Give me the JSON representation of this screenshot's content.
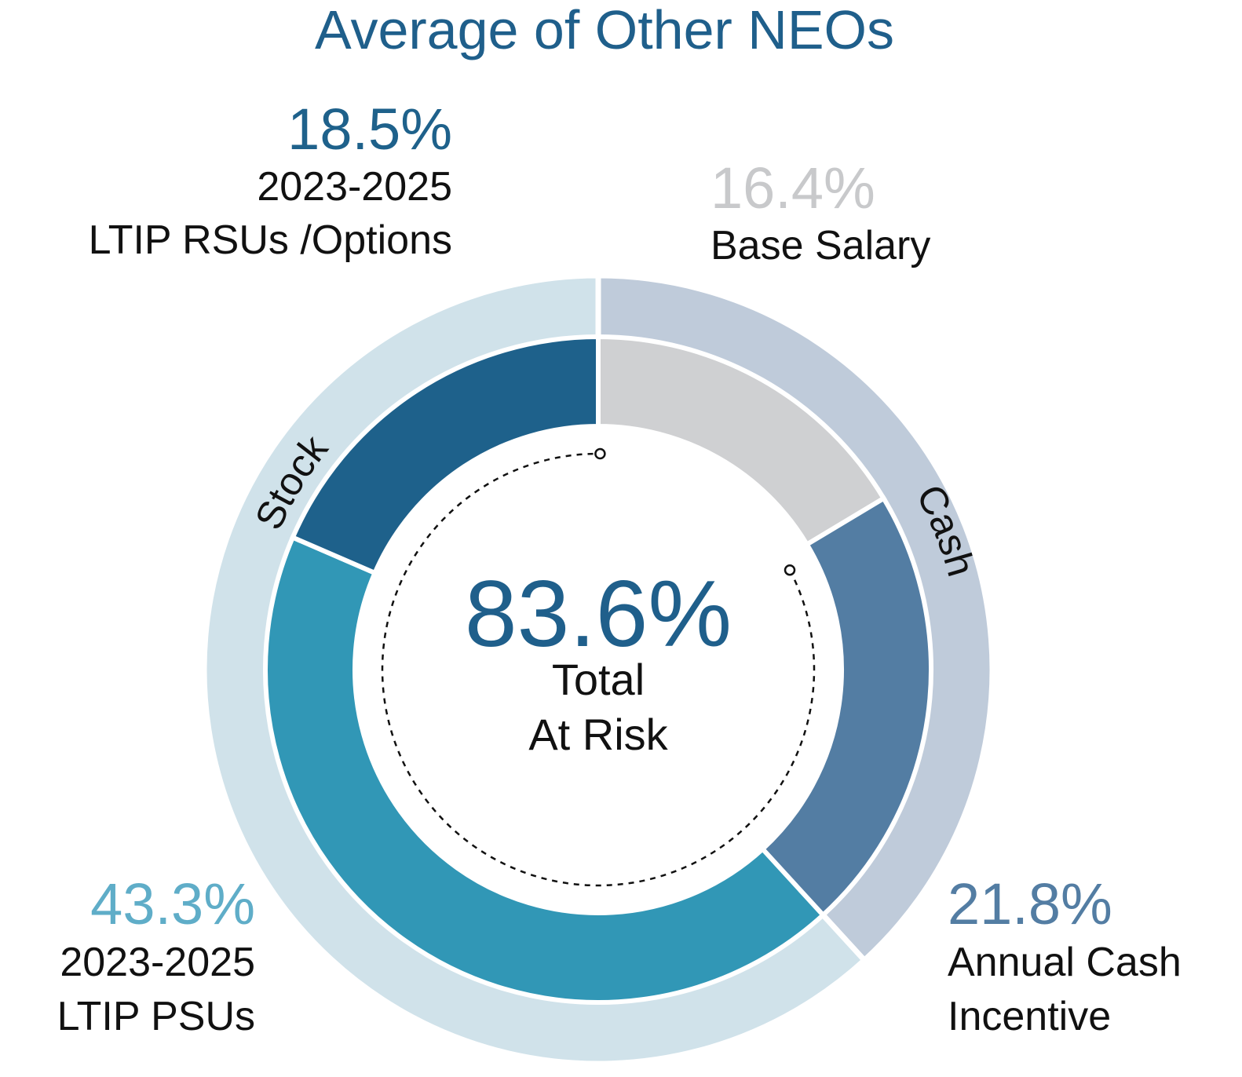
{
  "chart_data": {
    "type": "pie",
    "title": "Average of Other NEOs",
    "center": {
      "value": "83.6%",
      "label_line1": "Total",
      "label_line2": "At Risk"
    },
    "inner_ring": [
      {
        "name": "Base Salary",
        "value": 16.4,
        "value_label": "16.4%",
        "label_lines": [
          "Base Salary"
        ],
        "color": "#cfd0d2",
        "label_color": "#c8c9cb"
      },
      {
        "name": "Annual Cash Incentive",
        "value": 21.8,
        "value_label": "21.8%",
        "label_lines": [
          "Annual Cash",
          "Incentive"
        ],
        "color": "#537da3",
        "label_color": "#537da3"
      },
      {
        "name": "2023-2025 LTIP PSUs",
        "value": 43.3,
        "value_label": "43.3%",
        "label_lines": [
          "2023-2025",
          "LTIP PSUs"
        ],
        "color": "#3197b6",
        "label_color": "#5fadc8"
      },
      {
        "name": "2023-2025 LTIP RSUs /Options",
        "value": 18.5,
        "value_label": "18.5%",
        "label_lines": [
          "2023-2025",
          "LTIP RSUs /Options"
        ],
        "color": "#1e618b",
        "label_color": "#1e618b"
      }
    ],
    "outer_ring": [
      {
        "name": "Cash",
        "value": 38.2,
        "color": "#bfcbda"
      },
      {
        "name": "Stock",
        "value": 61.8,
        "color": "#d0e2ea"
      }
    ],
    "at_risk_arc": {
      "start_value": 16.4,
      "end_value": 100
    }
  }
}
